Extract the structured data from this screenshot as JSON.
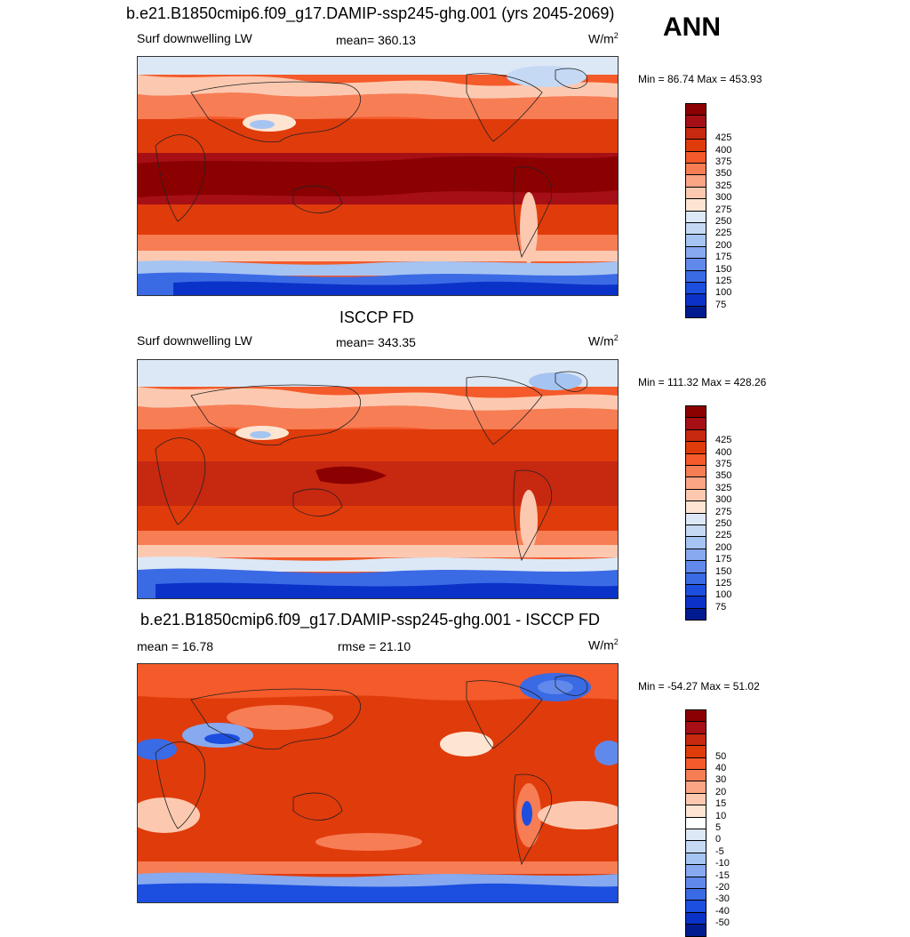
{
  "season": "ANN",
  "panels": [
    {
      "title": "b.e21.B1850cmip6.f09_g17.DAMIP-ssp245-ghg.001 (yrs 2045-2069)",
      "left_label": "Surf downwelling LW",
      "center_label": "mean= 360.13",
      "units_base": "W/m",
      "units_exp": "2",
      "minmax": "Min =  86.74 Max = 453.93",
      "colorbar": {
        "colors": [
          "#8b0000",
          "#a50f15",
          "#c72810",
          "#e03b0b",
          "#f45a2a",
          "#f77d55",
          "#fba585",
          "#fcc9b0",
          "#fde5d2",
          "#dde8f6",
          "#c5d9f5",
          "#a6c4f2",
          "#86a9ef",
          "#6189ec",
          "#3b6ae5",
          "#1c4ee0",
          "#0b32c8",
          "#001b8f"
        ],
        "labels": [
          "425",
          "400",
          "375",
          "350",
          "325",
          "300",
          "275",
          "250",
          "225",
          "200",
          "175",
          "150",
          "125",
          "100",
          "75"
        ]
      }
    },
    {
      "title": "ISCCP FD",
      "left_label": "Surf downwelling LW",
      "center_label": "mean= 343.35",
      "units_base": "W/m",
      "units_exp": "2",
      "minmax": "Min = 111.32 Max = 428.26",
      "colorbar": {
        "colors": [
          "#8b0000",
          "#a50f15",
          "#c72810",
          "#e03b0b",
          "#f45a2a",
          "#f77d55",
          "#fba585",
          "#fcc9b0",
          "#fde5d2",
          "#dde8f6",
          "#c5d9f5",
          "#a6c4f2",
          "#86a9ef",
          "#6189ec",
          "#3b6ae5",
          "#1c4ee0",
          "#0b32c8",
          "#001b8f"
        ],
        "labels": [
          "425",
          "400",
          "375",
          "350",
          "325",
          "300",
          "275",
          "250",
          "225",
          "200",
          "175",
          "150",
          "125",
          "100",
          "75"
        ]
      }
    },
    {
      "title": "b.e21.B1850cmip6.f09_g17.DAMIP-ssp245-ghg.001 - ISCCP FD",
      "left_label": "mean =  16.78",
      "center_label": "rmse =  21.10",
      "units_base": "W/m",
      "units_exp": "2",
      "minmax": "Min = -54.27 Max =  51.02",
      "colorbar": {
        "colors": [
          "#8b0000",
          "#a50f15",
          "#c72810",
          "#e03b0b",
          "#f45a2a",
          "#f77d55",
          "#fba585",
          "#fcc9b0",
          "#fde5d2",
          "#ffffff",
          "#dde8f6",
          "#c5d9f5",
          "#a6c4f2",
          "#86a9ef",
          "#6189ec",
          "#3b6ae5",
          "#1c4ee0",
          "#0b32c8",
          "#001b8f"
        ],
        "labels": [
          "50",
          "40",
          "30",
          "20",
          "15",
          "10",
          "5",
          "0",
          "-5",
          "-10",
          "-15",
          "-20",
          "-30",
          "-40",
          "-50"
        ]
      }
    }
  ],
  "colors": {
    "dark_red": "#a50f15",
    "red": "#d7301f",
    "orange_red": "#ef5a2a",
    "salmon": "#f7936b",
    "peach": "#fcc9b0",
    "cream": "#fde5d2",
    "white": "#ffffff",
    "light_blue": "#dde8f6",
    "sky": "#a6c4f2",
    "blue": "#3b6ae5",
    "deep_blue": "#0b32c8"
  }
}
